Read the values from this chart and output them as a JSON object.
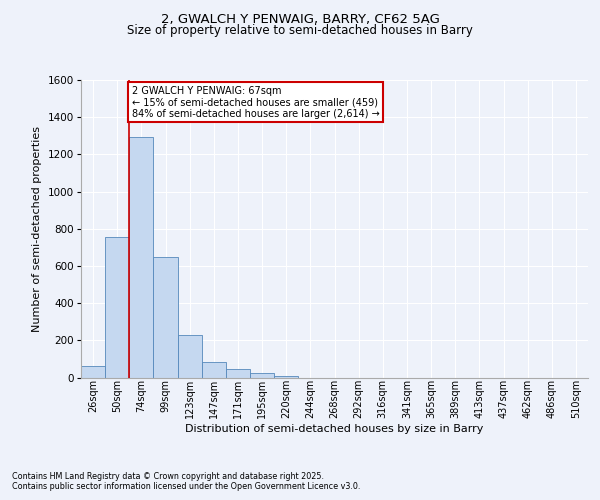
{
  "title_line1": "2, GWALCH Y PENWAIG, BARRY, CF62 5AG",
  "title_line2": "Size of property relative to semi-detached houses in Barry",
  "xlabel": "Distribution of semi-detached houses by size in Barry",
  "ylabel": "Number of semi-detached properties",
  "bar_labels": [
    "26sqm",
    "50sqm",
    "74sqm",
    "99sqm",
    "123sqm",
    "147sqm",
    "171sqm",
    "195sqm",
    "220sqm",
    "244sqm",
    "268sqm",
    "292sqm",
    "316sqm",
    "341sqm",
    "365sqm",
    "389sqm",
    "413sqm",
    "437sqm",
    "462sqm",
    "486sqm",
    "510sqm"
  ],
  "bar_values": [
    60,
    755,
    1295,
    650,
    230,
    85,
    45,
    22,
    10,
    0,
    0,
    0,
    0,
    0,
    0,
    0,
    0,
    0,
    0,
    0,
    0
  ],
  "bar_color": "#c5d8f0",
  "bar_edge_color": "#5588bb",
  "annotation_text": "2 GWALCH Y PENWAIG: 67sqm\n← 15% of semi-detached houses are smaller (459)\n84% of semi-detached houses are larger (2,614) →",
  "annotation_box_color": "#ffffff",
  "annotation_box_edge": "#cc0000",
  "vline_color": "#cc0000",
  "ylim": [
    0,
    1600
  ],
  "yticks": [
    0,
    200,
    400,
    600,
    800,
    1000,
    1200,
    1400,
    1600
  ],
  "background_color": "#eef2fa",
  "grid_color": "#ffffff",
  "footer_line1": "Contains HM Land Registry data © Crown copyright and database right 2025.",
  "footer_line2": "Contains public sector information licensed under the Open Government Licence v3.0."
}
